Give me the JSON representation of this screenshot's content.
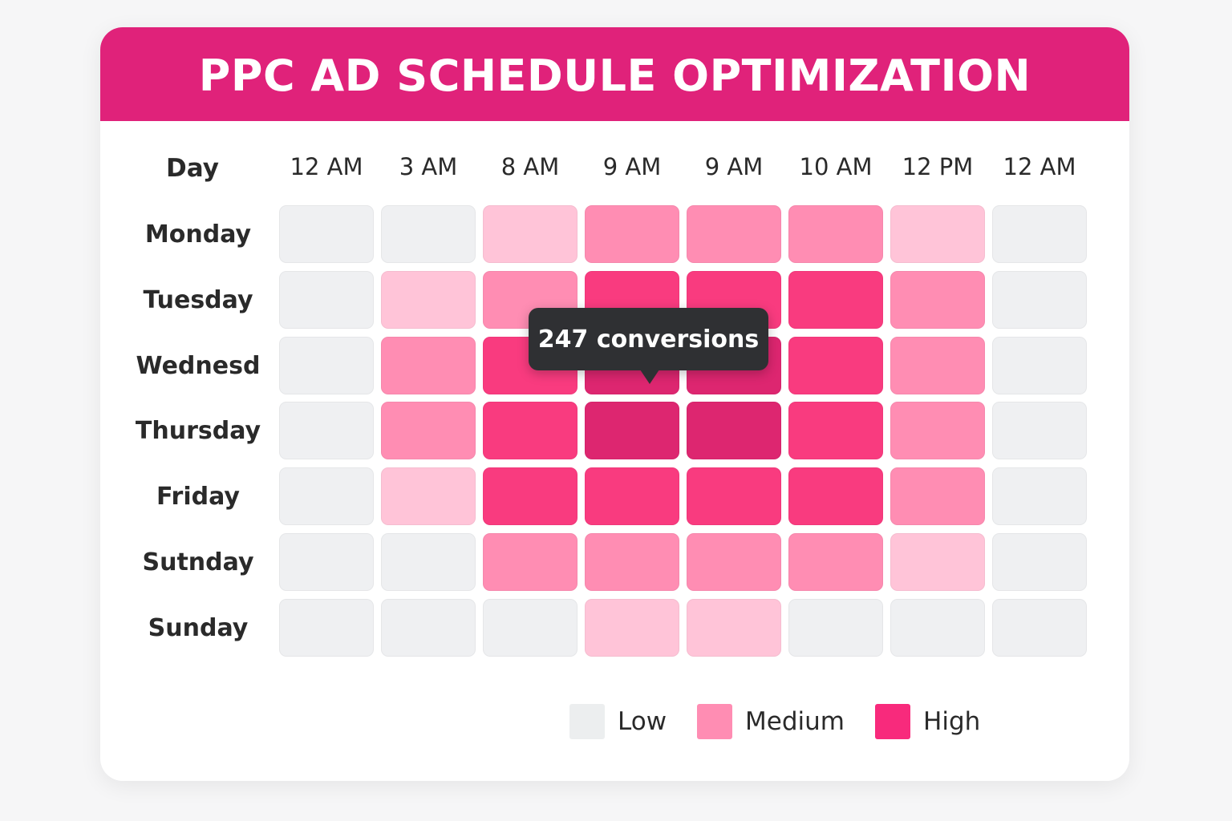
{
  "chart_data": {
    "type": "heatmap",
    "title": "PPC AD SCHEDULE OPTIMIZATION",
    "corner_label": "Day",
    "columns": [
      "12 AM",
      "3 AM",
      "8 AM",
      "9 AM",
      "9 AM",
      "10 AM",
      "12 PM",
      "12 AM"
    ],
    "rows": [
      "Monday",
      "Tuesday",
      "Wednesd",
      "Thursday",
      "Friday",
      "Sutnday",
      "Sunday"
    ],
    "levels": [
      [
        0,
        0,
        1,
        2,
        2,
        2,
        1,
        0
      ],
      [
        0,
        1,
        2,
        4,
        4,
        4,
        2,
        0
      ],
      [
        0,
        2,
        4,
        5,
        5,
        4,
        2,
        0
      ],
      [
        0,
        2,
        4,
        5,
        5,
        4,
        2,
        0
      ],
      [
        0,
        1,
        4,
        4,
        4,
        4,
        2,
        0
      ],
      [
        0,
        0,
        2,
        2,
        2,
        2,
        1,
        0
      ],
      [
        0,
        0,
        0,
        1,
        1,
        0,
        0,
        0
      ]
    ],
    "level_colors": [
      "#eff0f2",
      "#ffc4d8",
      "#ff8db3",
      "#ff5e98",
      "#f93b7f",
      "#dd2670"
    ],
    "tooltip": {
      "text": "247 conversions",
      "row": 2,
      "col": 3
    },
    "legend": [
      {
        "label": "Low",
        "color": "#eceeef"
      },
      {
        "label": "Medium",
        "color": "#ff8db3"
      },
      {
        "label": "High",
        "color": "#f82a7c"
      }
    ],
    "legend_position": "bottom-right"
  }
}
